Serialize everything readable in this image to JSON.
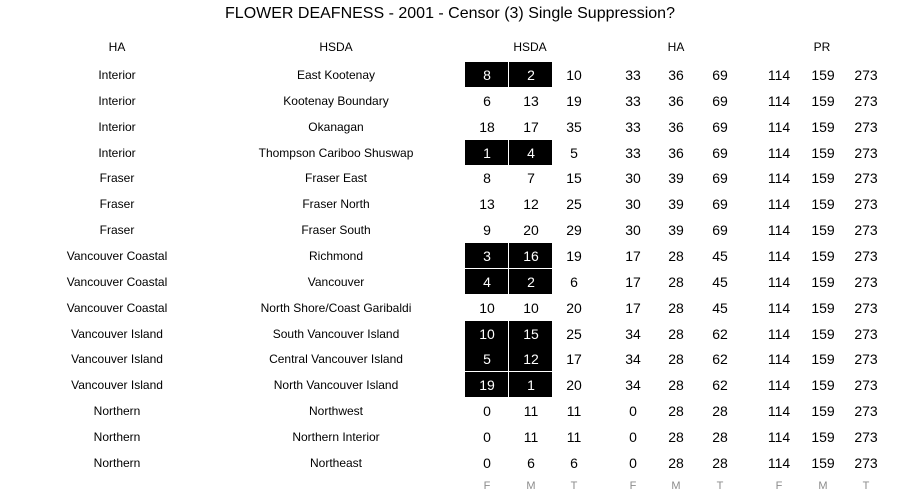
{
  "chart_data": {
    "type": "table",
    "title": "FLOWER DEAFNESS - 2001 - Censor (3) Single Suppression?",
    "headers": {
      "ha": "HA",
      "hsda": "HSDA",
      "hsda_group": "HSDA",
      "ha_group": "HA",
      "pr_group": "PR"
    },
    "footer": [
      "F",
      "M",
      "T",
      "F",
      "M",
      "T",
      "F",
      "M",
      "T"
    ],
    "rows": [
      {
        "ha": "Interior",
        "hsda": "East Kootenay",
        "hsda_f": 8,
        "hsda_m": 2,
        "hsda_t": 10,
        "ha_f": 33,
        "ha_m": 36,
        "ha_t": 69,
        "pr_f": 114,
        "pr_m": 159,
        "pr_t": 273,
        "suppressed": true
      },
      {
        "ha": "Interior",
        "hsda": "Kootenay Boundary",
        "hsda_f": 6,
        "hsda_m": 13,
        "hsda_t": 19,
        "ha_f": 33,
        "ha_m": 36,
        "ha_t": 69,
        "pr_f": 114,
        "pr_m": 159,
        "pr_t": 273,
        "suppressed": false
      },
      {
        "ha": "Interior",
        "hsda": "Okanagan",
        "hsda_f": 18,
        "hsda_m": 17,
        "hsda_t": 35,
        "ha_f": 33,
        "ha_m": 36,
        "ha_t": 69,
        "pr_f": 114,
        "pr_m": 159,
        "pr_t": 273,
        "suppressed": false
      },
      {
        "ha": "Interior",
        "hsda": "Thompson Cariboo Shuswap",
        "hsda_f": 1,
        "hsda_m": 4,
        "hsda_t": 5,
        "ha_f": 33,
        "ha_m": 36,
        "ha_t": 69,
        "pr_f": 114,
        "pr_m": 159,
        "pr_t": 273,
        "suppressed": true
      },
      {
        "ha": "Fraser",
        "hsda": "Fraser East",
        "hsda_f": 8,
        "hsda_m": 7,
        "hsda_t": 15,
        "ha_f": 30,
        "ha_m": 39,
        "ha_t": 69,
        "pr_f": 114,
        "pr_m": 159,
        "pr_t": 273,
        "suppressed": false
      },
      {
        "ha": "Fraser",
        "hsda": "Fraser North",
        "hsda_f": 13,
        "hsda_m": 12,
        "hsda_t": 25,
        "ha_f": 30,
        "ha_m": 39,
        "ha_t": 69,
        "pr_f": 114,
        "pr_m": 159,
        "pr_t": 273,
        "suppressed": false
      },
      {
        "ha": "Fraser",
        "hsda": "Fraser South",
        "hsda_f": 9,
        "hsda_m": 20,
        "hsda_t": 29,
        "ha_f": 30,
        "ha_m": 39,
        "ha_t": 69,
        "pr_f": 114,
        "pr_m": 159,
        "pr_t": 273,
        "suppressed": false
      },
      {
        "ha": "Vancouver Coastal",
        "hsda": "Richmond",
        "hsda_f": 3,
        "hsda_m": 16,
        "hsda_t": 19,
        "ha_f": 17,
        "ha_m": 28,
        "ha_t": 45,
        "pr_f": 114,
        "pr_m": 159,
        "pr_t": 273,
        "suppressed": true
      },
      {
        "ha": "Vancouver Coastal",
        "hsda": "Vancouver",
        "hsda_f": 4,
        "hsda_m": 2,
        "hsda_t": 6,
        "ha_f": 17,
        "ha_m": 28,
        "ha_t": 45,
        "pr_f": 114,
        "pr_m": 159,
        "pr_t": 273,
        "suppressed": true
      },
      {
        "ha": "Vancouver Coastal",
        "hsda": "North Shore/Coast Garibaldi",
        "hsda_f": 10,
        "hsda_m": 10,
        "hsda_t": 20,
        "ha_f": 17,
        "ha_m": 28,
        "ha_t": 45,
        "pr_f": 114,
        "pr_m": 159,
        "pr_t": 273,
        "suppressed": false
      },
      {
        "ha": "Vancouver Island",
        "hsda": "South Vancouver Island",
        "hsda_f": 10,
        "hsda_m": 15,
        "hsda_t": 25,
        "ha_f": 34,
        "ha_m": 28,
        "ha_t": 62,
        "pr_f": 114,
        "pr_m": 159,
        "pr_t": 273,
        "suppressed": true
      },
      {
        "ha": "Vancouver Island",
        "hsda": "Central Vancouver Island",
        "hsda_f": 5,
        "hsda_m": 12,
        "hsda_t": 17,
        "ha_f": 34,
        "ha_m": 28,
        "ha_t": 62,
        "pr_f": 114,
        "pr_m": 159,
        "pr_t": 273,
        "suppressed": true
      },
      {
        "ha": "Vancouver Island",
        "hsda": "North Vancouver Island",
        "hsda_f": 19,
        "hsda_m": 1,
        "hsda_t": 20,
        "ha_f": 34,
        "ha_m": 28,
        "ha_t": 62,
        "pr_f": 114,
        "pr_m": 159,
        "pr_t": 273,
        "suppressed": true
      },
      {
        "ha": "Northern",
        "hsda": "Northwest",
        "hsda_f": 0,
        "hsda_m": 11,
        "hsda_t": 11,
        "ha_f": 0,
        "ha_m": 28,
        "ha_t": 28,
        "pr_f": 114,
        "pr_m": 159,
        "pr_t": 273,
        "suppressed": false
      },
      {
        "ha": "Northern",
        "hsda": "Northern Interior",
        "hsda_f": 0,
        "hsda_m": 11,
        "hsda_t": 11,
        "ha_f": 0,
        "ha_m": 28,
        "ha_t": 28,
        "pr_f": 114,
        "pr_m": 159,
        "pr_t": 273,
        "suppressed": false
      },
      {
        "ha": "Northern",
        "hsda": "Northeast",
        "hsda_f": 0,
        "hsda_m": 6,
        "hsda_t": 6,
        "ha_f": 0,
        "ha_m": 28,
        "ha_t": 28,
        "pr_f": 114,
        "pr_m": 159,
        "pr_t": 273,
        "suppressed": false
      }
    ]
  },
  "colors": {
    "suppressed_fill": "#000000",
    "suppressed_text": "#ffffff",
    "footer_text": "#8c8c8c"
  }
}
